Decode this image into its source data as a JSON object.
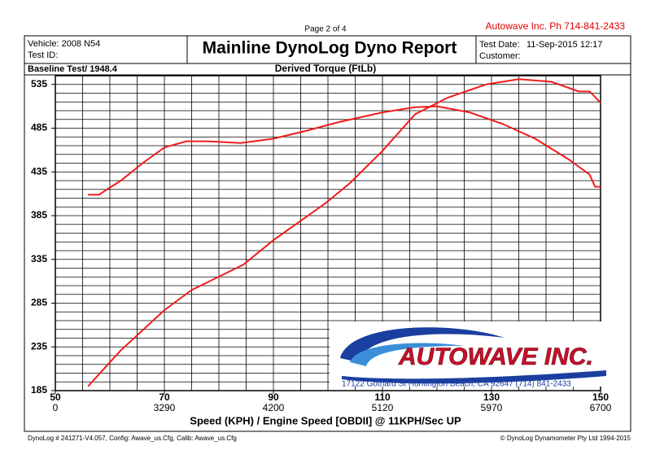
{
  "page": {
    "page_number": "Page 2 of 4",
    "company": "Autowave Inc.  Ph 714-841-2433",
    "vehicle": "Vehicle:  2008 N54",
    "test_id": "Test ID:",
    "baseline": "Baseline Test/ 1948.4",
    "test_date_label": "Test Date:",
    "test_date": "11-Sep-2015 12:17",
    "customer": "Customer:",
    "footer_left": "DynoLog # 241271-V4.057, Config: Awave_us.Cfg, Calib: Awave_us.Cfg",
    "footer_right": "© DynoLog Dynamometer Pty Ltd 1994-2015",
    "logo_name": "AUTOWAVE INC.",
    "logo_address": "17122 Gothard St  Huntington Beach, CA 92647  (714) 841-2433"
  },
  "chart_data": {
    "type": "line",
    "title": "Mainline DynoLog Dyno Report",
    "subtitle": "Derived Torque (FtLb)",
    "x_label": "Speed (KPH) / Engine Speed [OBDII] @ 11KPH/Sec UP",
    "xlim": [
      50,
      150
    ],
    "ylim": [
      185,
      545
    ],
    "xticks": [
      50,
      70,
      90,
      110,
      130,
      150
    ],
    "rpm_labels": [
      "0",
      "3290",
      "4200",
      "5120",
      "5970",
      "6700"
    ],
    "yticks": [
      185,
      235,
      285,
      335,
      385,
      435,
      485,
      535
    ],
    "xgrid": [
      55,
      60,
      65,
      70,
      75,
      80,
      85,
      90,
      95,
      100,
      105,
      110,
      115,
      120,
      125,
      130,
      135,
      140,
      145
    ],
    "ygrid": [
      195,
      205,
      215,
      225,
      235,
      245,
      255,
      265,
      275,
      285,
      295,
      305,
      315,
      325,
      335,
      345,
      355,
      365,
      375,
      385,
      395,
      405,
      415,
      425,
      435,
      445,
      455,
      465,
      475,
      485,
      495,
      505,
      515,
      525,
      535
    ],
    "grid": true,
    "series": [
      {
        "color": "#ee1c1c",
        "x": [
          56,
          58,
          62,
          66,
          70,
          74,
          78,
          84,
          90,
          96,
          102,
          110,
          116,
          120,
          126,
          132,
          138,
          144,
          148,
          149,
          150
        ],
        "values": [
          409,
          409,
          425,
          445,
          463,
          470,
          470,
          468,
          473,
          482,
          492,
          503,
          509,
          510,
          503,
          490,
          473,
          450,
          432,
          418,
          418
        ]
      },
      {
        "color": "#ee1c1c",
        "x": [
          56,
          62,
          70,
          75,
          84.5,
          90,
          99.5,
          104,
          110,
          116,
          122,
          129,
          135,
          141,
          146,
          148,
          150
        ],
        "values": [
          190,
          231,
          277,
          300,
          329,
          357,
          399,
          422,
          459,
          501,
          520,
          535,
          541,
          538,
          527,
          527,
          514
        ]
      }
    ]
  }
}
